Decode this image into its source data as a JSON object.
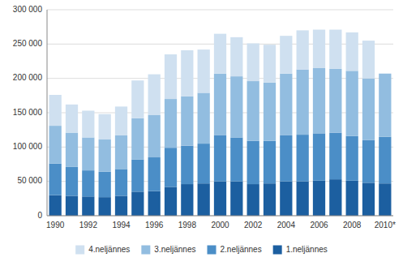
{
  "chart_data": {
    "type": "bar",
    "stacked": true,
    "grid": true,
    "legend": "bottom",
    "categories": [
      "1990",
      null,
      "1992",
      null,
      "1994",
      null,
      "1996",
      null,
      "1998",
      null,
      "2000",
      null,
      "2002",
      null,
      "2004",
      null,
      "2006",
      null,
      "2008",
      null,
      "2010*"
    ],
    "series": [
      {
        "name": "1.neljännes",
        "color": "#1c5fa0",
        "values": [
          30000,
          29000,
          28000,
          27000,
          29000,
          35000,
          36000,
          42000,
          46000,
          47000,
          50000,
          50000,
          46000,
          47000,
          50000,
          50000,
          51000,
          53000,
          51000,
          48000,
          47000
        ]
      },
      {
        "name": "2.neljännes",
        "color": "#4b8ec7",
        "values": [
          46000,
          42000,
          38000,
          37000,
          39000,
          47000,
          49000,
          57000,
          56000,
          58000,
          67000,
          64000,
          63000,
          62000,
          67000,
          68000,
          69000,
          68000,
          65000,
          62000,
          68000
        ]
      },
      {
        "name": "3.neljännes",
        "color": "#92bde0",
        "values": [
          55000,
          50000,
          48000,
          47000,
          49000,
          60000,
          62000,
          71000,
          72000,
          74000,
          90000,
          89000,
          87000,
          85000,
          90000,
          95000,
          95000,
          93000,
          95000,
          90000,
          92000
        ]
      },
      {
        "name": "4.neljännes",
        "color": "#cfe0f0",
        "values": [
          45000,
          41000,
          39000,
          37000,
          42000,
          55000,
          59000,
          65000,
          67000,
          63000,
          58000,
          57000,
          55000,
          55000,
          55000,
          57000,
          56000,
          57000,
          56000,
          55000,
          0
        ]
      }
    ],
    "ylim": [
      0,
      300000
    ],
    "yticks": [
      0,
      {
        "value": 50000,
        "label": "50 000"
      },
      {
        "value": 100000,
        "label": "100 000"
      },
      {
        "value": 150000,
        "label": "150 000"
      },
      {
        "value": 200000,
        "label": "200 000"
      },
      {
        "value": 250000,
        "label": "250 000"
      },
      {
        "value": 300000,
        "label": "300 000"
      }
    ]
  }
}
